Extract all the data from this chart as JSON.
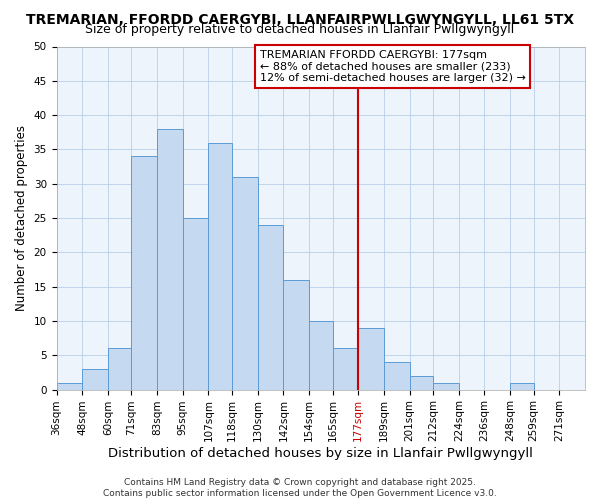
{
  "title1": "TREMARIAN, FFORDD CAERGYBI, LLANFAIRPWLLGWYNGYLL, LL61 5TX",
  "title2": "Size of property relative to detached houses in Llanfair Pwllgwyngyll",
  "xlabel": "Distribution of detached houses by size in Llanfair Pwllgwyngyll",
  "ylabel": "Number of detached properties",
  "footer1": "Contains HM Land Registry data © Crown copyright and database right 2025.",
  "footer2": "Contains public sector information licensed under the Open Government Licence v3.0.",
  "bin_labels": [
    "36sqm",
    "48sqm",
    "60sqm",
    "71sqm",
    "83sqm",
    "95sqm",
    "107sqm",
    "118sqm",
    "130sqm",
    "142sqm",
    "154sqm",
    "165sqm",
    "177sqm",
    "189sqm",
    "201sqm",
    "212sqm",
    "224sqm",
    "236sqm",
    "248sqm",
    "259sqm",
    "271sqm"
  ],
  "bin_edges": [
    36,
    48,
    60,
    71,
    83,
    95,
    107,
    118,
    130,
    142,
    154,
    165,
    177,
    189,
    201,
    212,
    224,
    236,
    248,
    259,
    271
  ],
  "bar_heights": [
    1,
    3,
    6,
    34,
    38,
    25,
    36,
    31,
    24,
    16,
    10,
    6,
    9,
    4,
    2,
    1,
    0,
    0,
    1,
    0,
    0
  ],
  "bar_color": "#c5d9f0",
  "bar_edge_color": "#5b9bd5",
  "grid_color": "#b8cfe8",
  "bg_color": "#eef4fb",
  "ref_line_x": 177,
  "ref_line_color": "#cc0000",
  "annotation_line1": "TREMARIAN FFORDD CAERGYBI: 177sqm",
  "annotation_line2": "← 88% of detached houses are smaller (233)",
  "annotation_line3": "12% of semi-detached houses are larger (32) →",
  "annotation_box_color": "#cc0000",
  "ref_label_color": "#cc0000",
  "ylim": [
    0,
    50
  ],
  "yticks": [
    0,
    5,
    10,
    15,
    20,
    25,
    30,
    35,
    40,
    45,
    50
  ],
  "title1_fontsize": 10,
  "title2_fontsize": 9,
  "xlabel_fontsize": 9.5,
  "ylabel_fontsize": 8.5,
  "tick_fontsize": 7.5,
  "annotation_fontsize": 8,
  "footer_fontsize": 6.5
}
